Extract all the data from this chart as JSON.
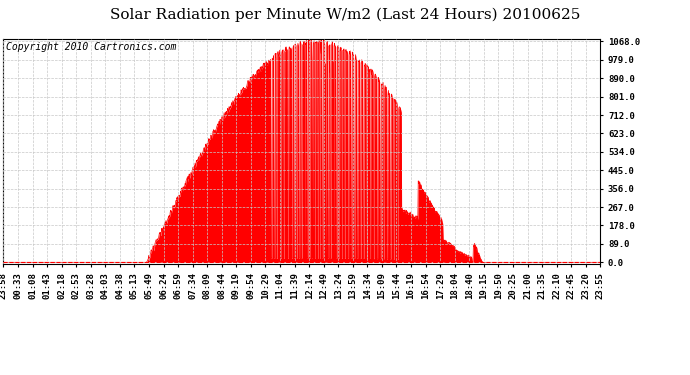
{
  "title": "Solar Radiation per Minute W/m2 (Last 24 Hours) 20100625",
  "copyright_text": "Copyright 2010 Cartronics.com",
  "fill_color": "#FF0000",
  "background_color": "#FFFFFF",
  "grid_color": "#C8C8C8",
  "dashed_line_color": "#FF0000",
  "ylim": [
    0.0,
    1068.0
  ],
  "ytick_values": [
    0.0,
    89.0,
    178.0,
    267.0,
    356.0,
    445.0,
    534.0,
    623.0,
    712.0,
    801.0,
    890.0,
    979.0,
    1068.0
  ],
  "xtick_labels": [
    "23:58",
    "00:33",
    "01:08",
    "01:43",
    "02:18",
    "02:53",
    "03:28",
    "04:03",
    "04:38",
    "05:13",
    "05:49",
    "06:24",
    "06:59",
    "07:34",
    "08:09",
    "08:44",
    "09:19",
    "09:54",
    "10:29",
    "11:04",
    "11:39",
    "12:14",
    "12:49",
    "13:24",
    "13:59",
    "14:34",
    "15:09",
    "15:44",
    "16:19",
    "16:54",
    "17:29",
    "18:04",
    "18:40",
    "19:15",
    "19:50",
    "20:25",
    "21:00",
    "21:35",
    "22:10",
    "22:45",
    "23:20",
    "23:55"
  ],
  "num_points": 1440,
  "sunrise_index": 345,
  "sunset_index": 1155,
  "title_fontsize": 11,
  "tick_fontsize": 6.5,
  "copyright_fontsize": 7
}
